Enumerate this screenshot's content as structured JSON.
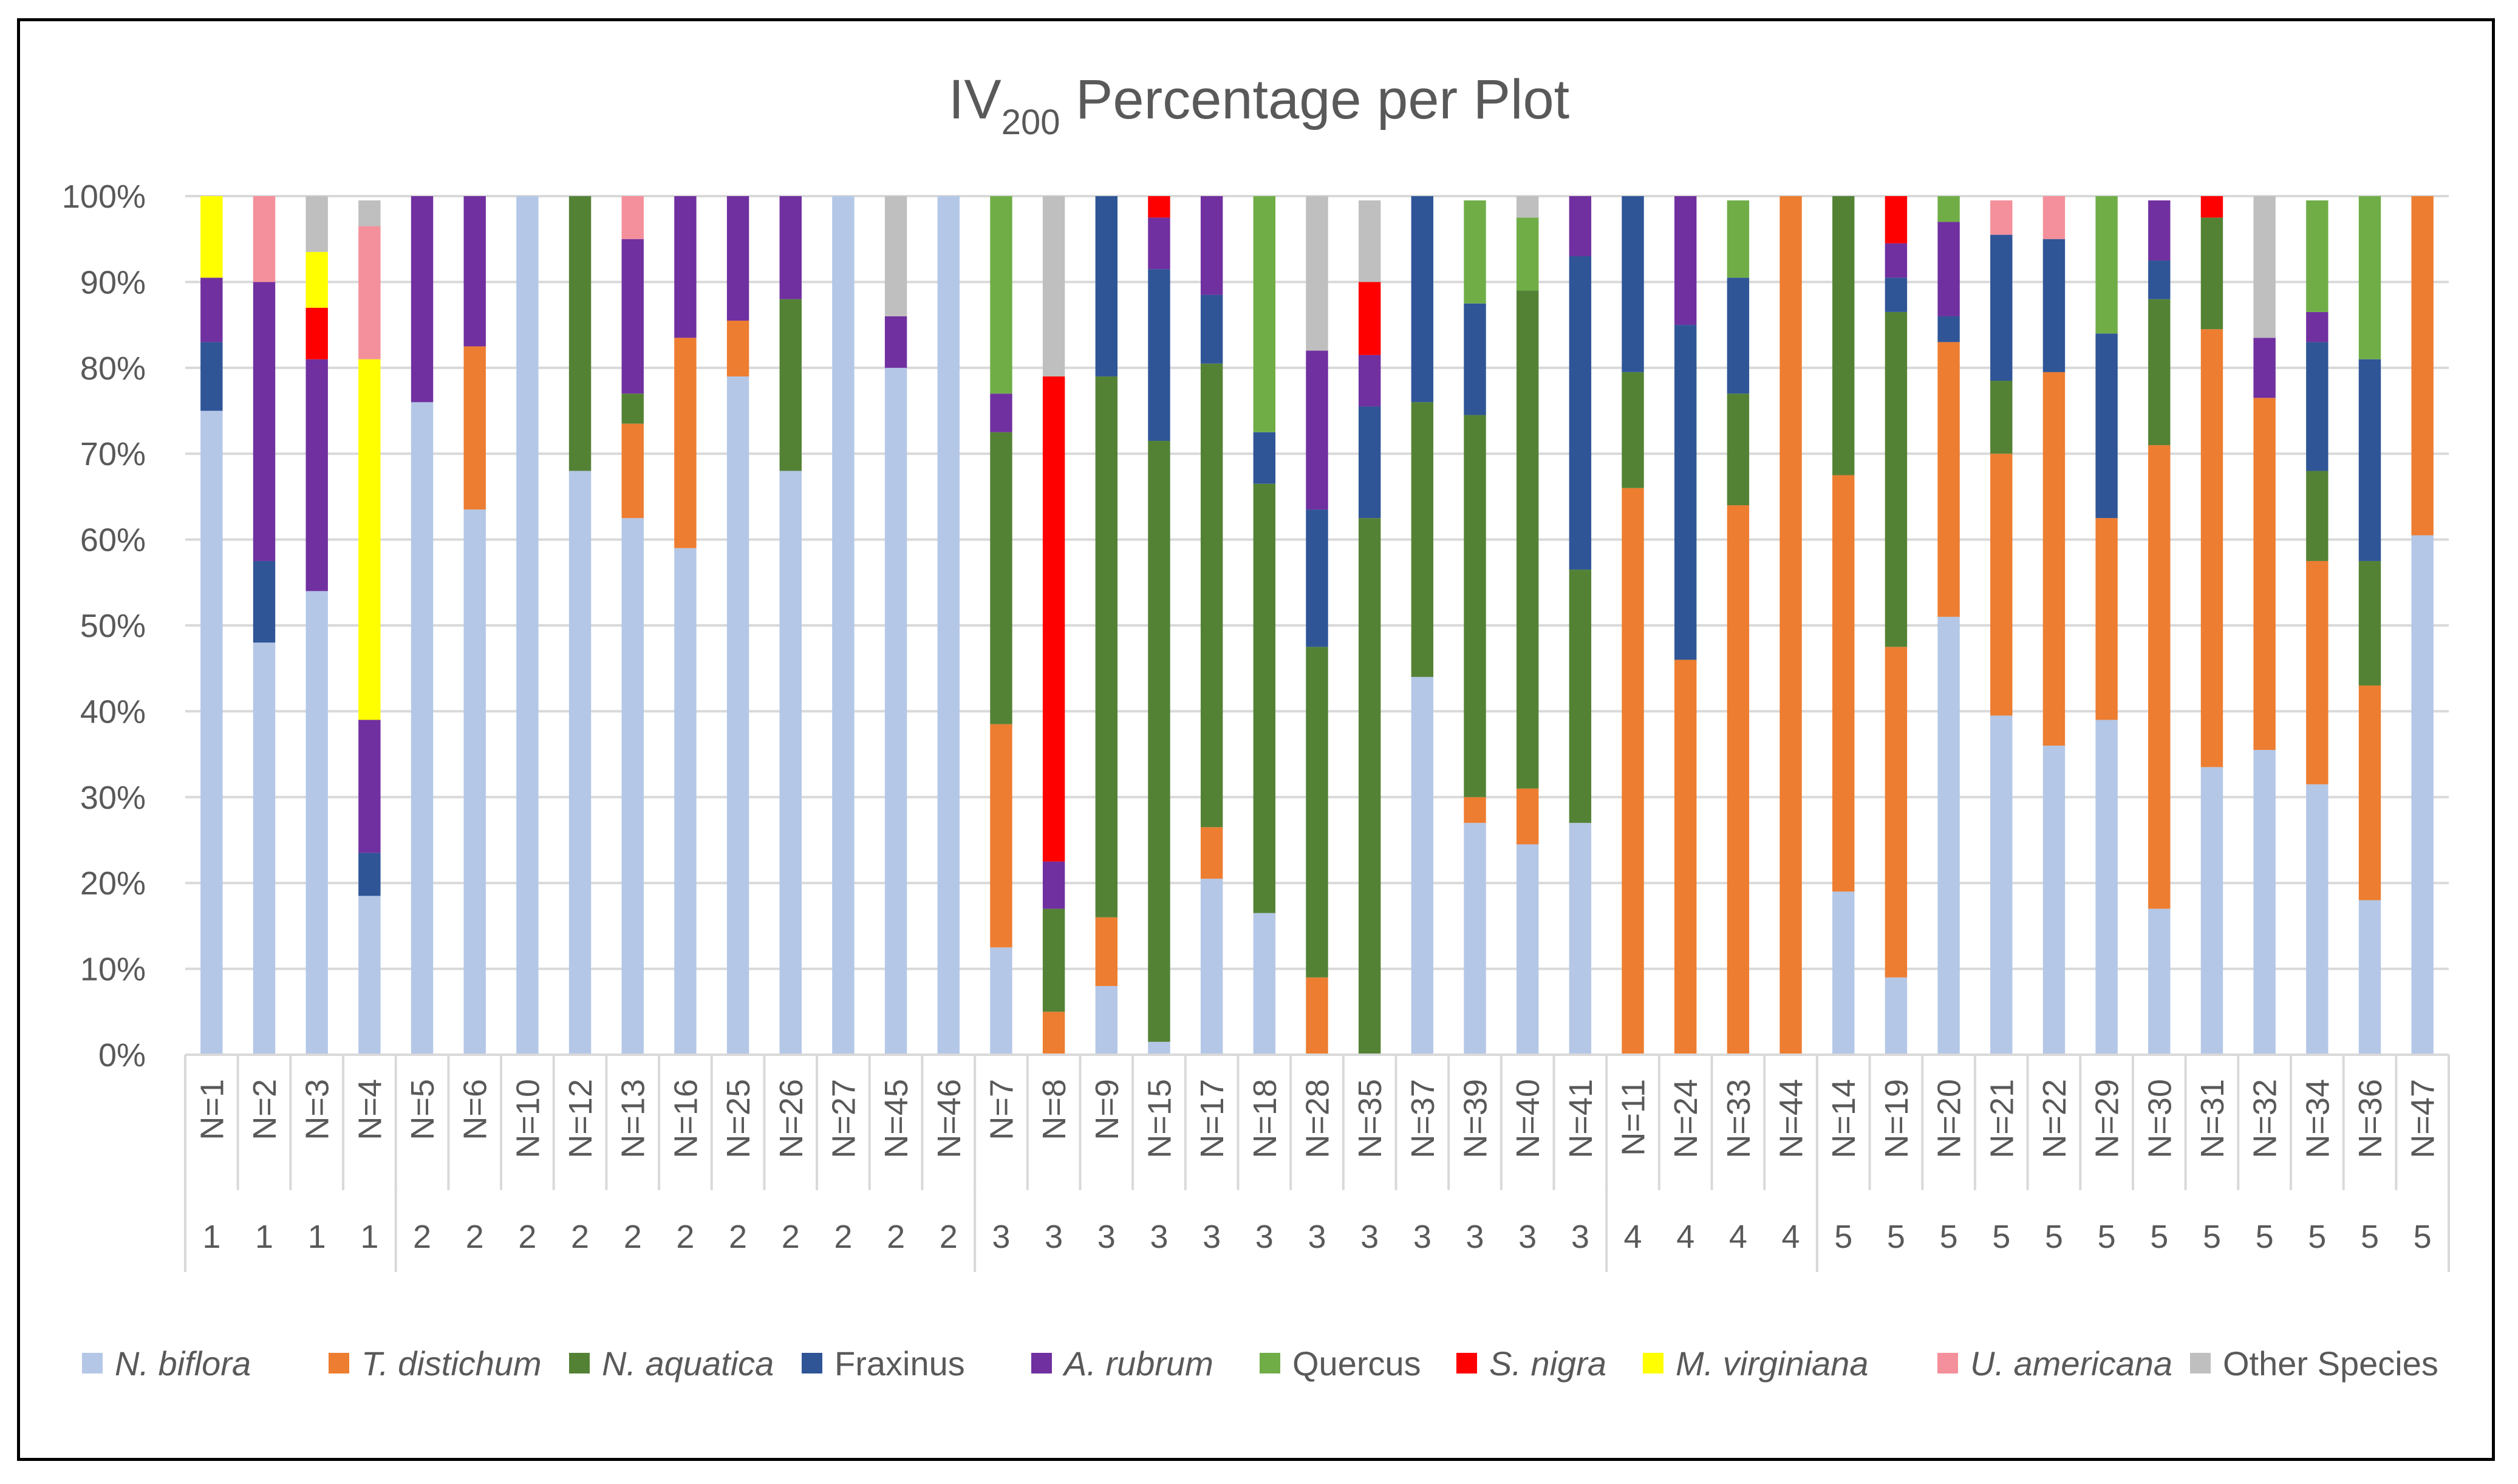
{
  "chart_data": {
    "type": "bar",
    "stacked": true,
    "title": {
      "prefix": "IV",
      "subscript": "200",
      "suffix": " Percentage per Plot"
    },
    "ylim": [
      0,
      100
    ],
    "y_ticks": [
      "0%",
      "10%",
      "20%",
      "30%",
      "40%",
      "50%",
      "60%",
      "70%",
      "80%",
      "90%",
      "100%"
    ],
    "categories": [
      "N=1",
      "N=2",
      "N=3",
      "N=4",
      "N=5",
      "N=6",
      "N=10",
      "N=12",
      "N=13",
      "N=16",
      "N=25",
      "N=26",
      "N=27",
      "N=45",
      "N=46",
      "N=7",
      "N=8",
      "N=9",
      "N=15",
      "N=17",
      "N=18",
      "N=28",
      "N=35",
      "N=37",
      "N=39",
      "N=40",
      "N=41",
      "N=11",
      "N=24",
      "N=33",
      "N=44",
      "N=14",
      "N=19",
      "N=20",
      "N=21",
      "N=22",
      "N=29",
      "N=30",
      "N=31",
      "N=32",
      "N=34",
      "N=36",
      "N=47"
    ],
    "groups": [
      "1",
      "1",
      "1",
      "1",
      "2",
      "2",
      "2",
      "2",
      "2",
      "2",
      "2",
      "2",
      "2",
      "2",
      "2",
      "3",
      "3",
      "3",
      "3",
      "3",
      "3",
      "3",
      "3",
      "3",
      "3",
      "3",
      "3",
      "4",
      "4",
      "4",
      "4",
      "5",
      "5",
      "5",
      "5",
      "5",
      "5",
      "5",
      "5",
      "5",
      "5",
      "5",
      "5"
    ],
    "series": [
      {
        "name": "N. biflora",
        "italic": true,
        "color": "#B4C7E7",
        "values": [
          75,
          48,
          54,
          18.5,
          76,
          63.5,
          100,
          68,
          62.5,
          59,
          79,
          68,
          100,
          80,
          100,
          12.5,
          0,
          8,
          1.5,
          20.5,
          16.5,
          0,
          0,
          44,
          27,
          24.5,
          27,
          0,
          0,
          0,
          0,
          19,
          9,
          51,
          39.5,
          36,
          39,
          17,
          33.5,
          35.5,
          31.5,
          18,
          60.5
        ]
      },
      {
        "name": "T. distichum",
        "italic": true,
        "color": "#ED7D31",
        "values": [
          0,
          0,
          0,
          0,
          0,
          19,
          0,
          0,
          11,
          24.5,
          6.5,
          0,
          0,
          0,
          0,
          26,
          5,
          8,
          0,
          6,
          0,
          9,
          0,
          0,
          3,
          6.5,
          0,
          66,
          46,
          64,
          100,
          48.5,
          38.5,
          32,
          30.5,
          43.5,
          23.5,
          54,
          51,
          41,
          26,
          25,
          39.5
        ]
      },
      {
        "name": "N. aquatica",
        "italic": true,
        "color": "#548235",
        "values": [
          0,
          0,
          0,
          0,
          0,
          0,
          0,
          32,
          3.5,
          0,
          0,
          20,
          0,
          0,
          0,
          34,
          12,
          63,
          70,
          54,
          50,
          38.5,
          62.5,
          32,
          44.5,
          58,
          29.5,
          13.5,
          0,
          13,
          0,
          32.5,
          39,
          0,
          8.5,
          0,
          0,
          17,
          13,
          0,
          10.5,
          14.5,
          0
        ]
      },
      {
        "name": "Fraxinus",
        "italic": false,
        "color": "#2F5597",
        "values": [
          8,
          9.5,
          0,
          5,
          0,
          0,
          0,
          0,
          0,
          0,
          0,
          0,
          0,
          0,
          0,
          0,
          0,
          21,
          20,
          8,
          6,
          16,
          13,
          24,
          13,
          0,
          36.5,
          20.5,
          39,
          13.5,
          0,
          0,
          4,
          3,
          17,
          15.5,
          21.5,
          4.5,
          0,
          0,
          15,
          23.5,
          0
        ]
      },
      {
        "name": "A. rubrum",
        "italic": true,
        "color": "#7030A0",
        "values": [
          7.5,
          32.5,
          27,
          15.5,
          24,
          17.5,
          0,
          0,
          18,
          16.5,
          14.5,
          12,
          0,
          6,
          0,
          4.5,
          5.5,
          0,
          6,
          11.5,
          0,
          18.5,
          6,
          0,
          0,
          0,
          7,
          0,
          15,
          0,
          0,
          0,
          4,
          11,
          0,
          0,
          0,
          7,
          0,
          7,
          3.5,
          0,
          0
        ]
      },
      {
        "name": "Quercus",
        "italic": false,
        "color": "#70AD47",
        "values": [
          0,
          0,
          0,
          0,
          0,
          0,
          0,
          0,
          0,
          0,
          0,
          0,
          0,
          0,
          0,
          23,
          0,
          0,
          0,
          0,
          27.5,
          0,
          0,
          0,
          12,
          8.5,
          0,
          0,
          0,
          9,
          0,
          0,
          0,
          3,
          0,
          0,
          16,
          0,
          0,
          0,
          13,
          19,
          0
        ]
      },
      {
        "name": "S. nigra",
        "italic": true,
        "color": "#FF0000",
        "values": [
          0,
          0,
          6,
          0,
          0,
          0,
          0,
          0,
          0,
          0,
          0,
          0,
          0,
          0,
          0,
          0,
          56.5,
          0,
          2.5,
          0,
          0,
          0,
          8.5,
          0,
          0,
          0,
          0,
          0,
          0,
          0,
          0,
          0,
          5.5,
          0,
          0,
          0,
          0,
          0,
          2.5,
          0,
          0,
          0,
          0
        ]
      },
      {
        "name": "M. virginiana",
        "italic": true,
        "color": "#FFFF00",
        "values": [
          9.5,
          0,
          6.5,
          42,
          0,
          0,
          0,
          0,
          0,
          0,
          0,
          0,
          0,
          0,
          0,
          0,
          0,
          0,
          0,
          0,
          0,
          0,
          0,
          0,
          0,
          0,
          0,
          0,
          0,
          0,
          0,
          0,
          0,
          0,
          0,
          0,
          0,
          0,
          0,
          0,
          0,
          0,
          0
        ]
      },
      {
        "name": "U. americana",
        "italic": true,
        "color": "#F4909B",
        "values": [
          0,
          10,
          0,
          15.5,
          0,
          0,
          0,
          0,
          5,
          0,
          0,
          0,
          0,
          0,
          0,
          0,
          0,
          0,
          0,
          0,
          0,
          0,
          0,
          0,
          0,
          0,
          0,
          0,
          0,
          0,
          0,
          0,
          0,
          0,
          4,
          5,
          0,
          0,
          0,
          0,
          0,
          0,
          0
        ]
      },
      {
        "name": "Other Species",
        "italic": false,
        "color": "#BFBFBF",
        "values": [
          0,
          0,
          6.5,
          3,
          0,
          0,
          0,
          0,
          0,
          0,
          0,
          0,
          0,
          14,
          0,
          0,
          21,
          0,
          0,
          0,
          0,
          18,
          9.5,
          0,
          0,
          2.5,
          0,
          0,
          0,
          0,
          0,
          0,
          0,
          0,
          0,
          0,
          0,
          0,
          0,
          16.5,
          0,
          0,
          0
        ]
      }
    ]
  }
}
